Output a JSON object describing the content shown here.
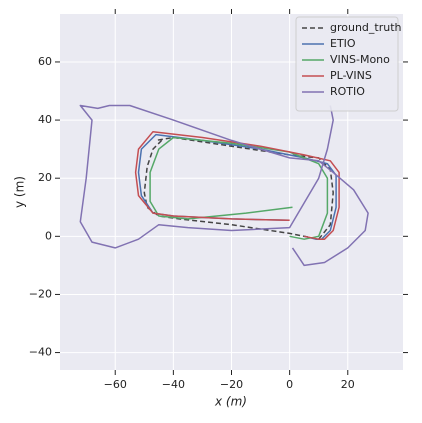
{
  "chart_data": {
    "type": "line",
    "xlabel": "x (m)",
    "ylabel": "y (m)",
    "xlim": [
      -79,
      39
    ],
    "ylim": [
      -46,
      76.5
    ],
    "xticks": [
      {
        "value": -60,
        "label": "−60"
      },
      {
        "value": -40,
        "label": "−40"
      },
      {
        "value": -20,
        "label": "−20"
      },
      0,
      20
    ],
    "yticks": [
      {
        "value": -40,
        "label": "−40"
      },
      {
        "value": -20,
        "label": "−20"
      },
      0,
      20,
      40,
      60
    ],
    "grid": true,
    "legend": "upper right",
    "series": [
      {
        "name": "ground_truth",
        "color": "#444444",
        "dashed": true,
        "x": [
          -44,
          -47,
          -49,
          -50,
          -49,
          -45,
          -38,
          -20,
          0,
          10,
          14,
          15,
          14,
          10,
          0,
          -20,
          -40,
          -46
        ],
        "values": [
          33,
          30,
          24,
          15,
          10,
          7,
          6,
          4,
          1,
          -1,
          4,
          15,
          23,
          27,
          28,
          31,
          34,
          33
        ]
      },
      {
        "name": "ETIO",
        "color": "#4c72b0",
        "x": [
          0,
          -20,
          -40,
          -47,
          -51,
          -52,
          -51,
          -46,
          -30,
          -10,
          5,
          13,
          16,
          16,
          14,
          11,
          9,
          5
        ],
        "values": [
          5.5,
          6,
          7,
          8,
          14,
          22,
          30,
          35,
          33,
          30,
          27,
          25,
          21,
          10,
          2,
          -1,
          -1,
          0
        ]
      },
      {
        "name": "VINS-Mono",
        "color": "#55a868",
        "x": [
          1,
          -15,
          -35,
          -45,
          -48,
          -48,
          -45,
          -40,
          -20,
          0,
          10,
          13,
          13,
          10,
          5,
          0
        ],
        "values": [
          10,
          8,
          6,
          7,
          12,
          22,
          30,
          34,
          32,
          29,
          25,
          20,
          8,
          0,
          -1,
          0
        ]
      },
      {
        "name": "PL-VINS",
        "color": "#c44e52",
        "x": [
          0,
          -20,
          -40,
          -47,
          -52,
          -53,
          -52,
          -47,
          -30,
          -10,
          5,
          14,
          17,
          17,
          15,
          12,
          10,
          5
        ],
        "values": [
          5.5,
          6,
          7,
          8,
          14,
          22,
          30,
          36,
          34,
          31,
          28,
          26,
          22,
          10,
          2,
          -1,
          -1,
          0
        ]
      },
      {
        "name": "ROTIO",
        "color": "#8172b2",
        "x": [
          1,
          5,
          12,
          20,
          26,
          27,
          22,
          15,
          10,
          0,
          -20,
          -40,
          -55,
          -62,
          -66,
          -72,
          -68,
          -70,
          -72,
          -68,
          -60,
          -52,
          -45,
          -35,
          -20,
          0,
          10,
          13,
          15,
          14
        ],
        "values": [
          -4,
          -10,
          -9,
          -4,
          2,
          8,
          16,
          22,
          26,
          27,
          33,
          40,
          45,
          45,
          44,
          45,
          40,
          20,
          5,
          -2,
          -4,
          -1,
          4,
          3,
          2,
          3,
          20,
          30,
          40,
          45
        ]
      }
    ]
  }
}
